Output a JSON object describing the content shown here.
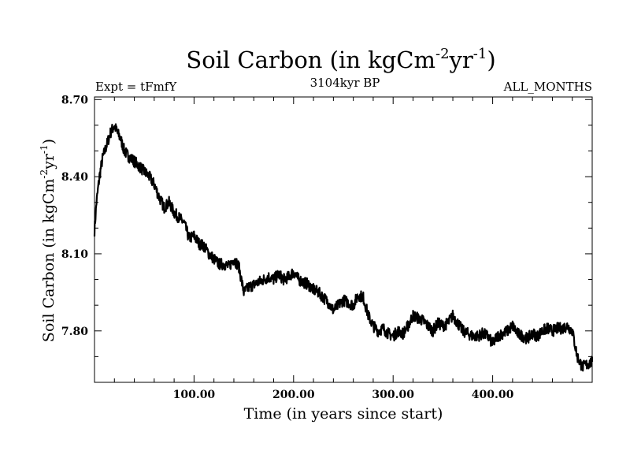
{
  "chart_data": {
    "type": "line",
    "title": "Soil Carbon (in kgCm",
    "title_sup1": "-2",
    "title_mid": "yr",
    "title_sup2": "-1",
    "title_end": ")",
    "header_left": "Expt = tFmfY",
    "header_center": "3104kyr BP",
    "header_right": "ALL_MONTHS",
    "xlabel": "Time (in years since start)",
    "ylabel": "Soil Carbon (in kgCm",
    "ylabel_sup1": "-2",
    "ylabel_mid": "yr",
    "ylabel_sup2": "-1",
    "ylabel_end": ")",
    "xlim": [
      0,
      500
    ],
    "ylim": [
      7.6,
      8.71
    ],
    "xticks": [
      100,
      200,
      300,
      400
    ],
    "xtick_labels": [
      "100.00",
      "200.00",
      "300.00",
      "400.00"
    ],
    "yticks": [
      7.8,
      8.1,
      8.4,
      8.7
    ],
    "ytick_labels": [
      "7.80",
      "8.10",
      "8.40",
      "8.70"
    ],
    "line_color": "#000000",
    "series": [
      {
        "name": "soil carbon",
        "x": [
          0,
          2,
          5,
          8,
          12,
          16,
          20,
          23,
          26,
          30,
          34,
          40,
          45,
          50,
          55,
          60,
          65,
          70,
          75,
          80,
          85,
          90,
          95,
          100,
          105,
          110,
          115,
          120,
          125,
          130,
          135,
          140,
          145,
          150,
          155,
          160,
          165,
          170,
          175,
          180,
          185,
          190,
          195,
          200,
          205,
          210,
          215,
          220,
          225,
          230,
          235,
          240,
          245,
          250,
          255,
          260,
          265,
          270,
          275,
          280,
          285,
          290,
          295,
          300,
          305,
          310,
          315,
          320,
          325,
          330,
          335,
          340,
          345,
          350,
          355,
          360,
          365,
          370,
          375,
          380,
          385,
          390,
          395,
          400,
          405,
          410,
          415,
          420,
          425,
          430,
          435,
          440,
          445,
          450,
          455,
          460,
          465,
          470,
          475,
          480,
          485,
          490,
          495,
          500
        ],
        "y": [
          8.19,
          8.3,
          8.4,
          8.47,
          8.52,
          8.57,
          8.6,
          8.57,
          8.55,
          8.5,
          8.48,
          8.46,
          8.44,
          8.42,
          8.4,
          8.37,
          8.32,
          8.28,
          8.3,
          8.26,
          8.24,
          8.22,
          8.16,
          8.17,
          8.14,
          8.13,
          8.1,
          8.08,
          8.06,
          8.06,
          8.05,
          8.08,
          8.05,
          7.95,
          7.97,
          7.98,
          7.99,
          8.0,
          8.01,
          8.0,
          8.02,
          8.0,
          8.01,
          8.03,
          8.0,
          7.99,
          7.98,
          7.96,
          7.95,
          7.93,
          7.91,
          7.88,
          7.9,
          7.92,
          7.91,
          7.9,
          7.94,
          7.93,
          7.86,
          7.82,
          7.8,
          7.81,
          7.79,
          7.78,
          7.8,
          7.79,
          7.82,
          7.86,
          7.85,
          7.84,
          7.82,
          7.8,
          7.83,
          7.82,
          7.83,
          7.86,
          7.83,
          7.8,
          7.79,
          7.78,
          7.78,
          7.79,
          7.78,
          7.75,
          7.78,
          7.79,
          7.8,
          7.82,
          7.79,
          7.78,
          7.77,
          7.79,
          7.78,
          7.8,
          7.81,
          7.8,
          7.81,
          7.81,
          7.82,
          7.8,
          7.7,
          7.66,
          7.67,
          7.68
        ]
      }
    ]
  }
}
